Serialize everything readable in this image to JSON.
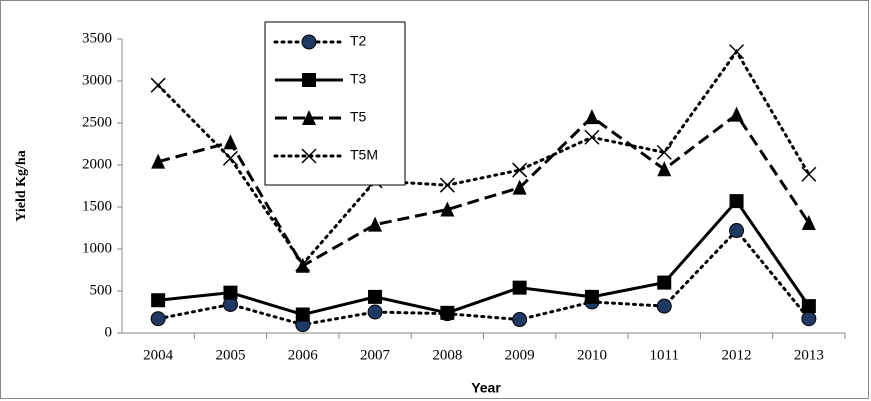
{
  "chart_data": {
    "type": "line",
    "x_label": "Year",
    "y_label": "Yield Kg/ha",
    "categories": [
      "2004",
      "2005",
      "2006",
      "2007",
      "2008",
      "2009",
      "2010",
      "1011",
      "2012",
      "2013"
    ],
    "series": [
      {
        "name": "T2",
        "color": "#000000",
        "marker": "circle",
        "marker_color": "#1f3864",
        "dash": "dotted",
        "values": [
          170,
          340,
          100,
          250,
          230,
          160,
          370,
          320,
          1220,
          170
        ]
      },
      {
        "name": "T3",
        "color": "#000000",
        "marker": "square",
        "marker_color": "#000000",
        "dash": "solid",
        "values": [
          390,
          480,
          220,
          430,
          240,
          540,
          430,
          600,
          1570,
          320
        ]
      },
      {
        "name": "T5",
        "color": "#000000",
        "marker": "triangle",
        "marker_color": "#000000",
        "dash": "dashed",
        "values": [
          2040,
          2270,
          800,
          1290,
          1470,
          1730,
          2570,
          1950,
          2600,
          1310
        ]
      },
      {
        "name": "T5M",
        "color": "#000000",
        "marker": "x",
        "marker_color": "#000000",
        "dash": "dotted",
        "values": [
          2950,
          2080,
          820,
          1810,
          1760,
          1940,
          2330,
          2150,
          3350,
          1890
        ]
      }
    ],
    "ylim": [
      0,
      3500
    ],
    "yticks": [
      0,
      500,
      1000,
      1500,
      2000,
      2500,
      3000,
      3500
    ],
    "grid": false,
    "legend": "upper-left"
  }
}
